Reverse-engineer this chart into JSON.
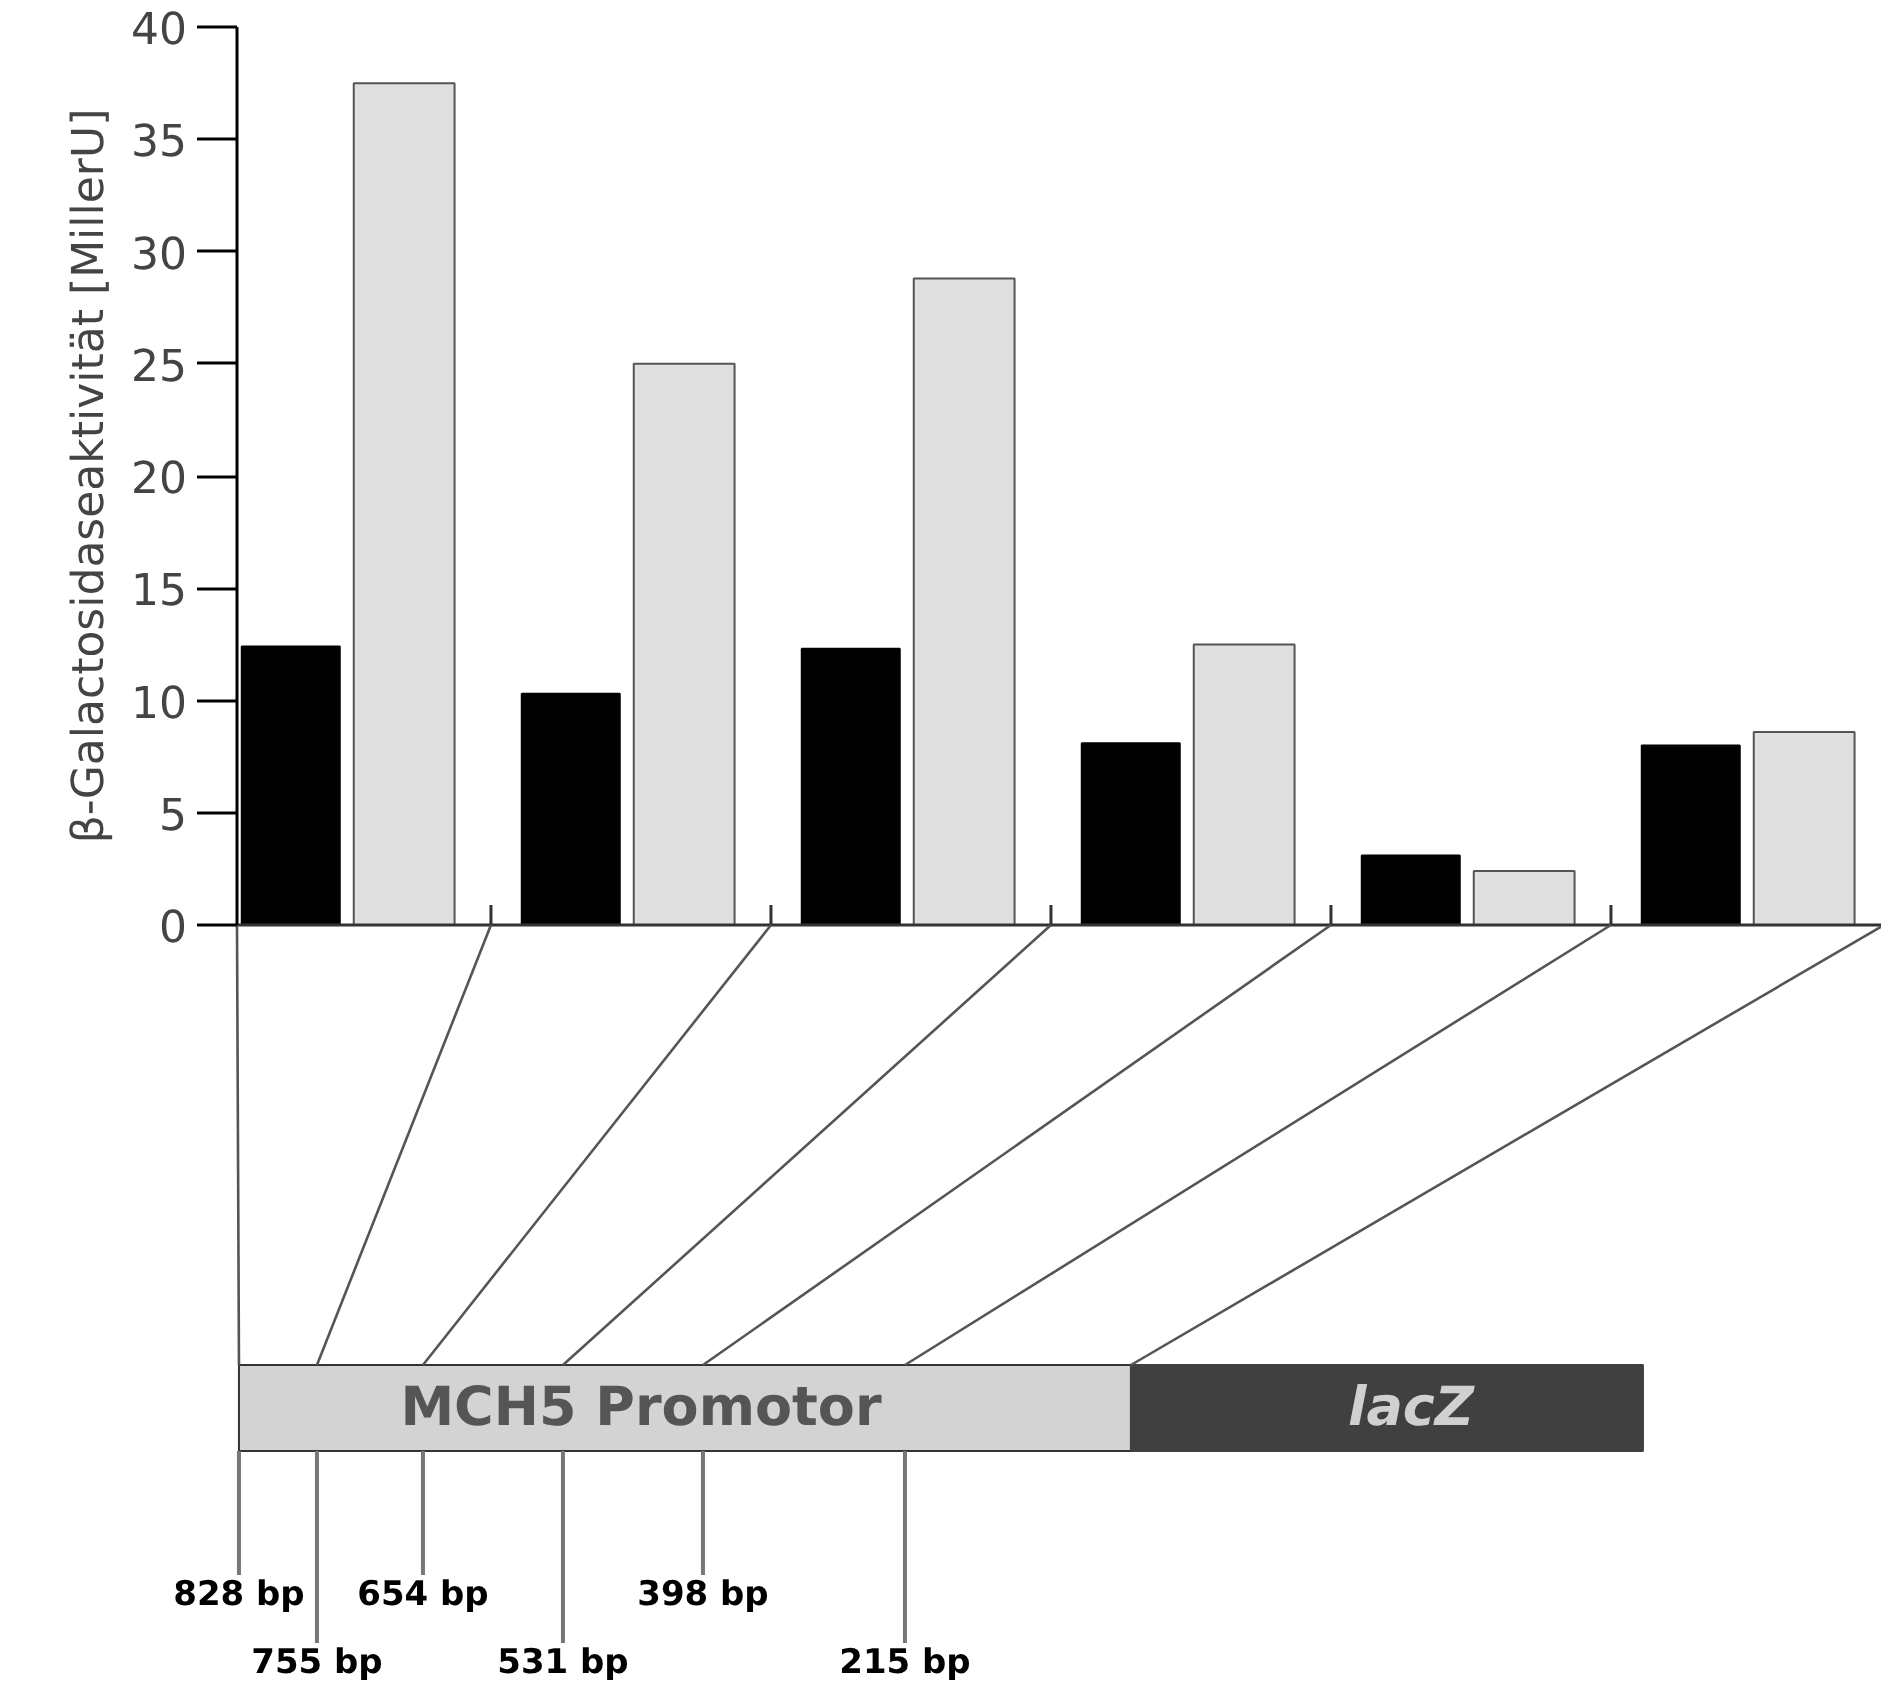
{
  "chart_data": {
    "type": "bar",
    "ylabel": "β-Galactosidaseaktivität [MillerU]",
    "categories": [
      null,
      null,
      null,
      null,
      null,
      null
    ],
    "series": [
      {
        "color": "#000000",
        "values": [
          12.4,
          10.3,
          12.3,
          8.1,
          3.1,
          8.0
        ]
      },
      {
        "color": "#e0e0e0",
        "values": [
          37.5,
          25.0,
          28.8,
          12.5,
          2.4,
          8.6
        ]
      }
    ],
    "ylim": [
      0,
      40
    ],
    "yticks": [
      0,
      5,
      10,
      15,
      20,
      25,
      30,
      35,
      40
    ],
    "annotations": [
      "828 bp",
      "755 bp",
      "654 bp",
      "531 bp",
      "398 bp",
      "215 bp",
      "MCH5 Promotor",
      "lacZ"
    ]
  }
}
